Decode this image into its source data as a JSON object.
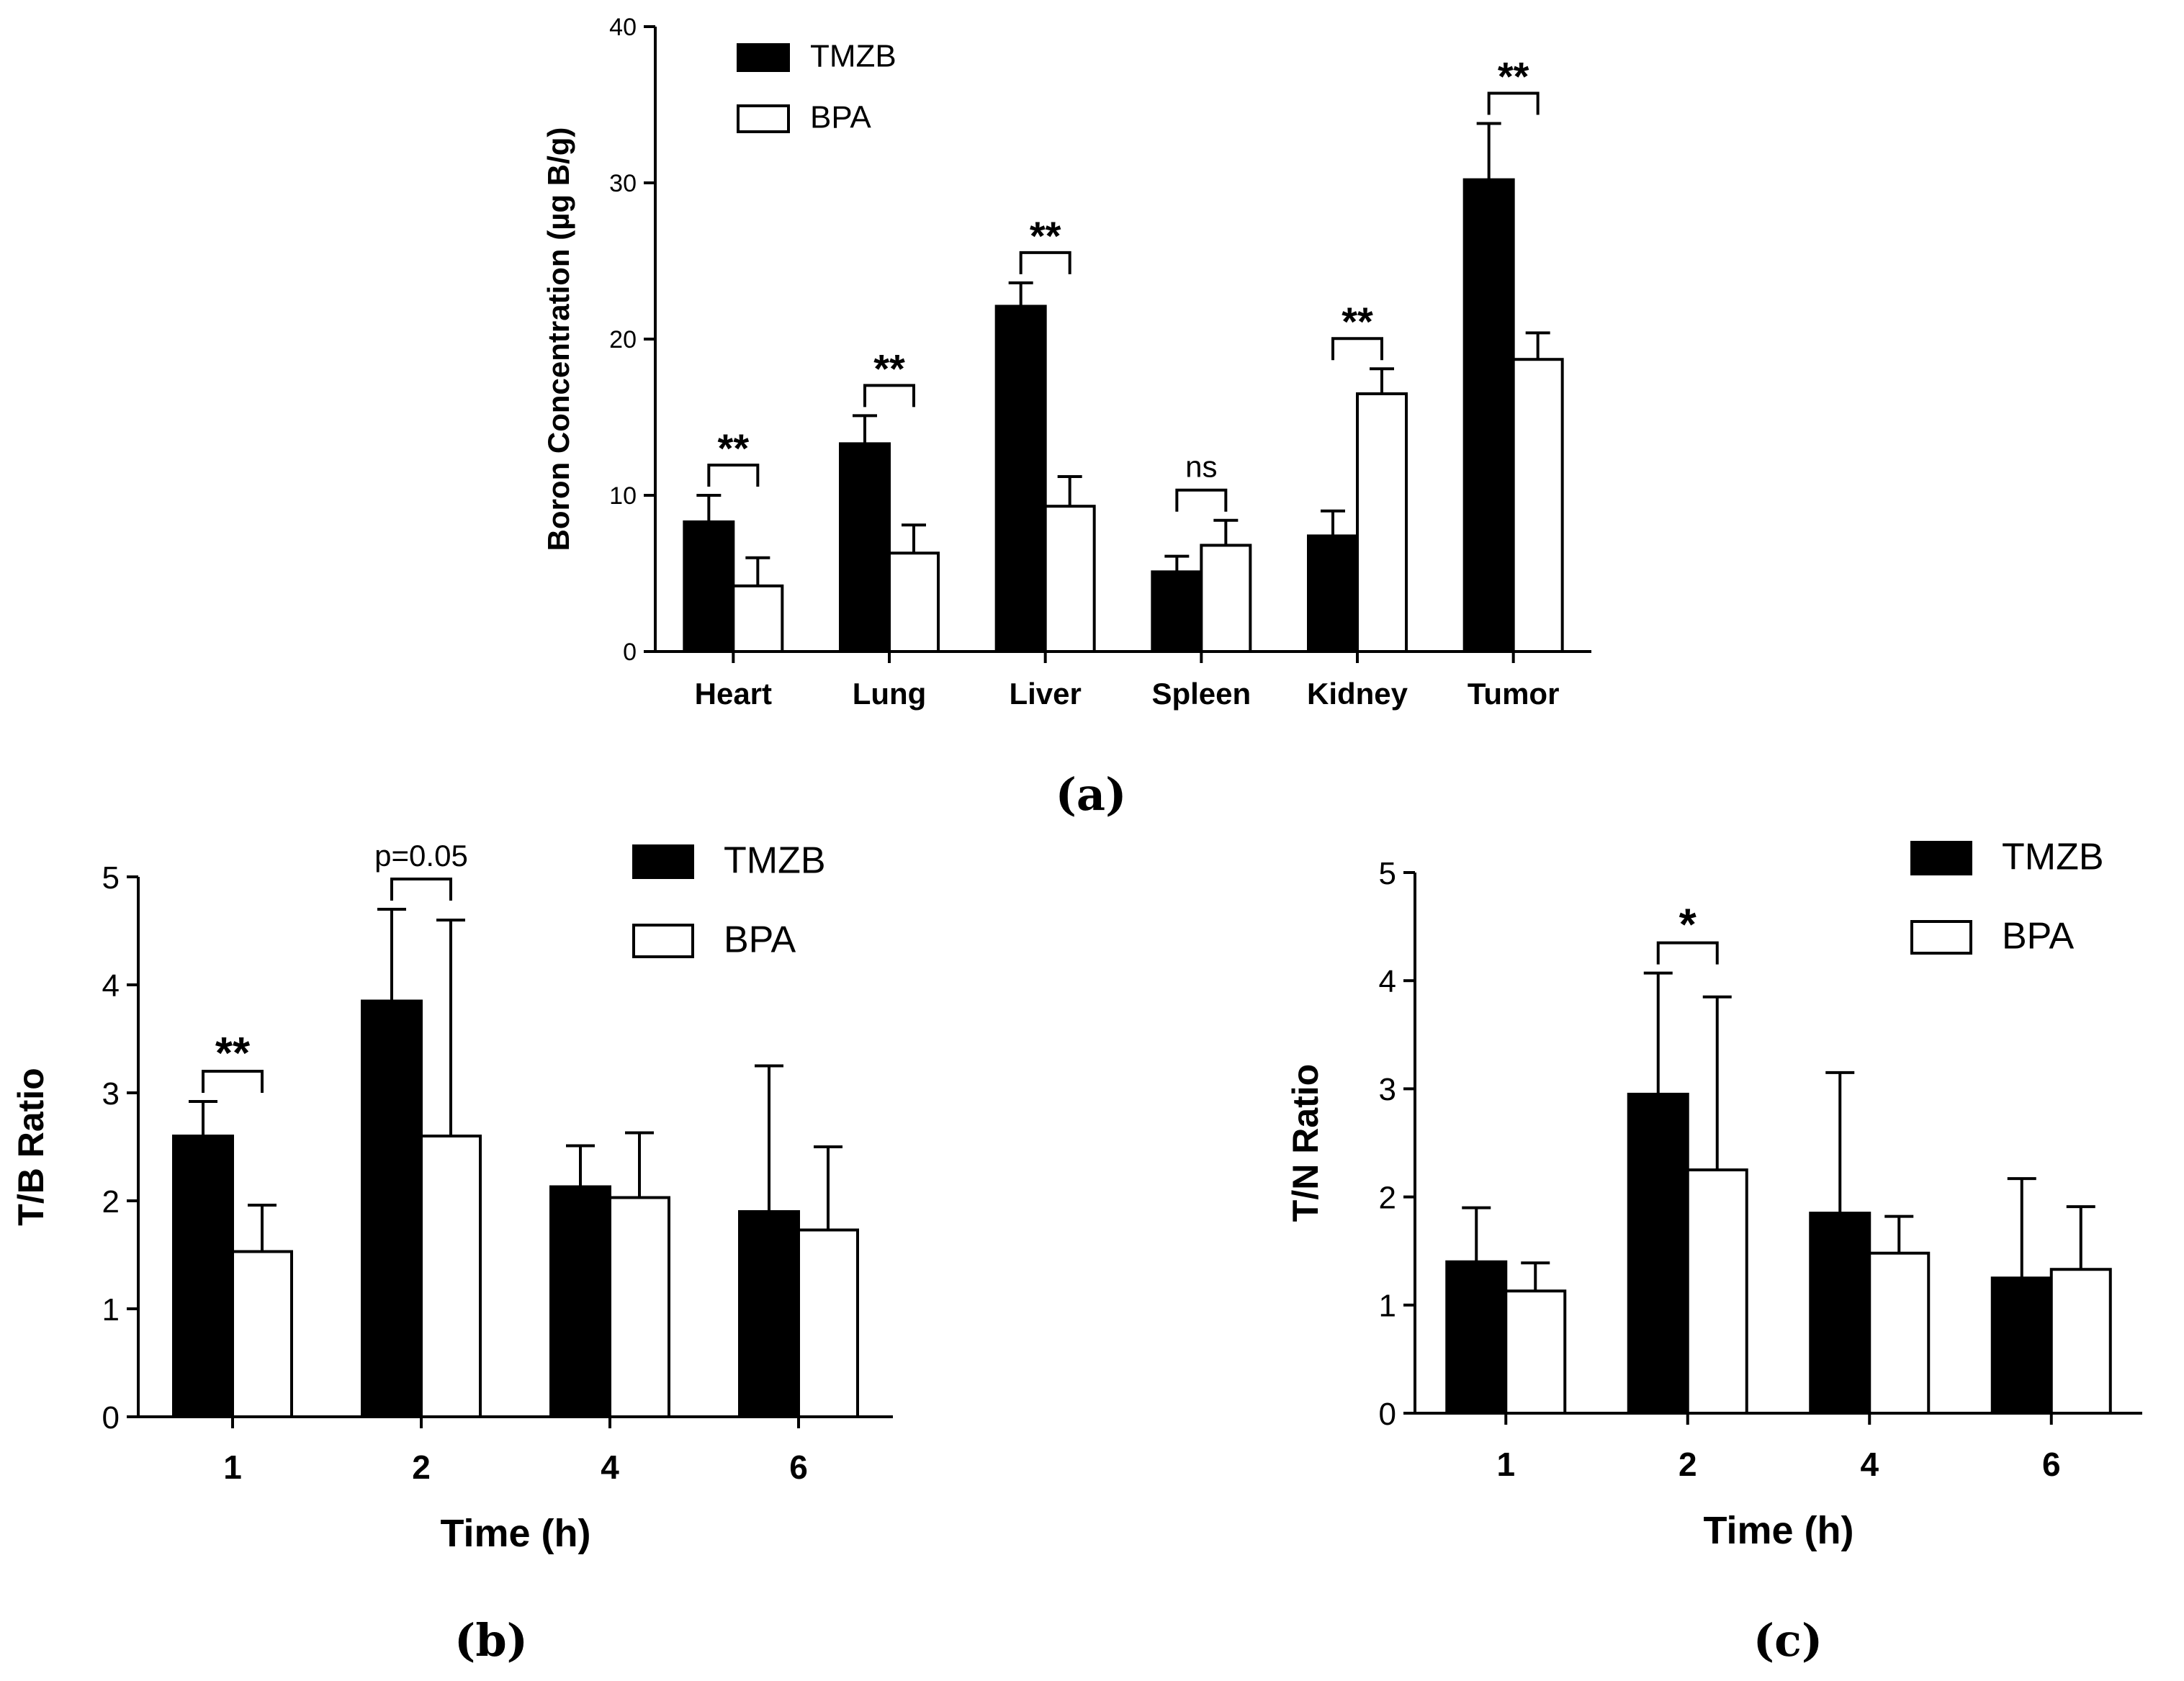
{
  "chart_data": [
    {
      "type": "bar",
      "panel_label": "(a)",
      "title": "",
      "xlabel": "",
      "ylabel": "Boron Concentration (µg B/g)",
      "ylim": [
        0,
        40
      ],
      "yticks": [
        0,
        10,
        20,
        30,
        40
      ],
      "categories": [
        "Heart",
        "Lung",
        "Liver",
        "Spleen",
        "Kidney",
        "Tumor"
      ],
      "series": [
        {
          "name": "TMZB",
          "color": "#000000",
          "values": [
            8.3,
            13.3,
            22.1,
            5.1,
            7.4,
            30.2
          ],
          "errors": [
            1.7,
            1.8,
            1.5,
            1.0,
            1.6,
            3.6
          ]
        },
        {
          "name": "BPA",
          "color": "#ffffff",
          "values": [
            4.2,
            6.3,
            9.3,
            6.8,
            16.5,
            18.7
          ],
          "errors": [
            1.8,
            1.8,
            1.9,
            1.6,
            1.6,
            1.7
          ]
        }
      ],
      "significance": [
        "**",
        "**",
        "**",
        "ns",
        "**",
        "**"
      ],
      "legend": [
        "TMZB",
        "BPA"
      ]
    },
    {
      "type": "bar",
      "panel_label": "(b)",
      "title": "",
      "xlabel": "Time (h)",
      "ylabel": "T/B Ratio",
      "ylim": [
        0,
        5
      ],
      "yticks": [
        0,
        1,
        2,
        3,
        4,
        5
      ],
      "categories": [
        "1",
        "2",
        "4",
        "6"
      ],
      "series": [
        {
          "name": "TMZB",
          "color": "#000000",
          "values": [
            2.6,
            3.85,
            2.13,
            1.9
          ],
          "errors": [
            0.32,
            0.85,
            0.38,
            1.35
          ]
        },
        {
          "name": "BPA",
          "color": "#ffffff",
          "values": [
            1.53,
            2.6,
            2.03,
            1.73
          ],
          "errors": [
            0.43,
            2.0,
            0.6,
            0.77
          ]
        }
      ],
      "significance": [
        "**",
        "p=0.05",
        "",
        ""
      ],
      "legend": [
        "TMZB",
        "BPA"
      ]
    },
    {
      "type": "bar",
      "panel_label": "(c)",
      "title": "",
      "xlabel": "Time (h)",
      "ylabel": "T/N Ratio",
      "ylim": [
        0,
        5
      ],
      "yticks": [
        0,
        1,
        2,
        3,
        4,
        5
      ],
      "categories": [
        "1",
        "2",
        "4",
        "6"
      ],
      "series": [
        {
          "name": "TMZB",
          "color": "#000000",
          "values": [
            1.4,
            2.95,
            1.85,
            1.25
          ],
          "errors": [
            0.5,
            1.12,
            1.3,
            0.92
          ]
        },
        {
          "name": "BPA",
          "color": "#ffffff",
          "values": [
            1.13,
            2.25,
            1.48,
            1.33
          ],
          "errors": [
            0.26,
            1.6,
            0.34,
            0.58
          ]
        }
      ],
      "significance": [
        "",
        "*",
        "",
        ""
      ],
      "legend": [
        "TMZB",
        "BPA"
      ]
    }
  ]
}
